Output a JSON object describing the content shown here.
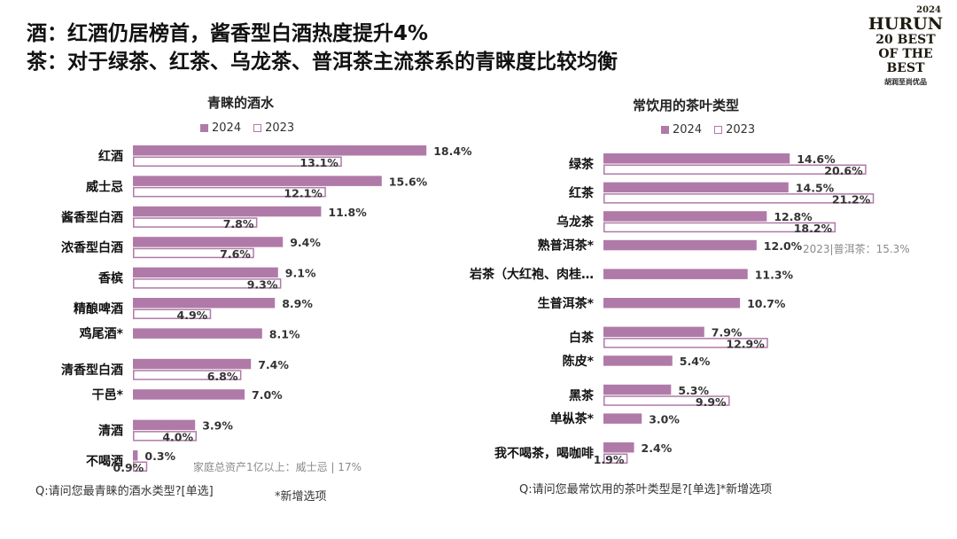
{
  "header": {
    "title_line1": "酒：红酒仍居榜首，酱香型白酒热度提升4%",
    "title_line2": "茶：对于绿茶、红茶、乌龙茶、普洱茶主流茶系的青睐度比较均衡"
  },
  "logo": {
    "year": "2024",
    "brand": "HURUN",
    "mid": "20 BEST OF THE BEST",
    "sub": "胡润至尚优品"
  },
  "colors": {
    "bar": "#b07aa8",
    "text": "#1a1a1a",
    "note": "#8a8a8a"
  },
  "chart_data": [
    {
      "type": "bar",
      "orientation": "horizontal",
      "title": "青睐的酒水",
      "legend": [
        "2024",
        "2023"
      ],
      "categories": [
        "红酒",
        "威士忌",
        "酱香型白酒",
        "浓香型白酒",
        "香槟",
        "精酿啤酒",
        "鸡尾酒*",
        "清香型白酒",
        "干邑*",
        "清酒",
        "不喝酒"
      ],
      "series": [
        {
          "name": "2024",
          "values": [
            18.4,
            15.6,
            11.8,
            9.4,
            9.1,
            8.9,
            8.1,
            7.4,
            7.0,
            3.9,
            0.3
          ]
        },
        {
          "name": "2023",
          "values": [
            13.1,
            12.1,
            7.8,
            7.6,
            9.3,
            4.9,
            null,
            6.8,
            null,
            4.0,
            0.9
          ]
        }
      ],
      "value_labels_2024": [
        "18.4%",
        "15.6%",
        "11.8%",
        "9.4%",
        "9.1%",
        "8.9%",
        "8.1%",
        "7.4%",
        "7.0%",
        "3.9%",
        "0.3%"
      ],
      "value_labels_2023": [
        "13.1%",
        "12.1%",
        "7.8%",
        "7.6%",
        "9.3%",
        "4.9%",
        "",
        "6.8%",
        "",
        "4.0%",
        "0.9%"
      ],
      "annotation": "家庭总资产1亿以上：威士忌 | 17%",
      "question": "Q:请问您最青睐的酒水类型?[单选]",
      "footnote": "*新增选项"
    },
    {
      "type": "bar",
      "orientation": "horizontal",
      "title": "常饮用的茶叶类型",
      "legend": [
        "2024",
        "2023"
      ],
      "categories": [
        "绿茶",
        "红茶",
        "乌龙茶",
        "熟普洱茶*",
        "岩茶（大红袍、肉桂…",
        "生普洱茶*",
        "白茶",
        "陈皮*",
        "黑茶",
        "单枞茶*",
        "我不喝茶，喝咖啡"
      ],
      "series": [
        {
          "name": "2024",
          "values": [
            14.6,
            14.5,
            12.8,
            12.0,
            11.3,
            10.7,
            7.9,
            5.4,
            5.3,
            3.0,
            2.4
          ]
        },
        {
          "name": "2023",
          "values": [
            20.6,
            21.2,
            18.2,
            null,
            null,
            null,
            12.9,
            null,
            9.9,
            null,
            1.9
          ]
        }
      ],
      "value_labels_2024": [
        "14.6%",
        "14.5%",
        "12.8%",
        "12.0%",
        "11.3%",
        "10.7%",
        "7.9%",
        "5.4%",
        "5.3%",
        "3.0%",
        "2.4%"
      ],
      "value_labels_2023": [
        "20.6%",
        "21.2%",
        "18.2%",
        "",
        "",
        "",
        "12.9%",
        "",
        "9.9%",
        "",
        "1.9%"
      ],
      "annotation": "2023|普洱茶：15.3%",
      "question": "Q:请问您最常饮用的茶叶类型是?[单选]*新增选项"
    }
  ]
}
